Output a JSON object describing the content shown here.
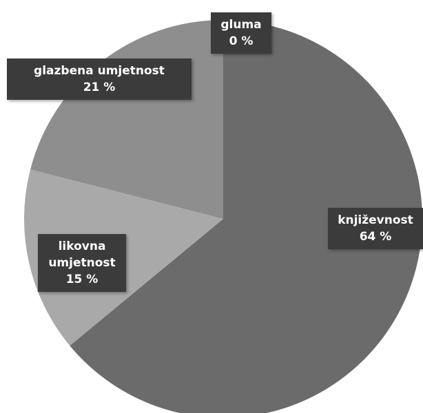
{
  "chart_data": {
    "type": "pie",
    "categories": [
      "književnost",
      "likovna umjetnost",
      "glazbena umjetnost",
      "gluma"
    ],
    "values": [
      64,
      15,
      21,
      0
    ],
    "value_labels": [
      "64 %",
      "15 %",
      "21 %",
      "0 %"
    ],
    "colors": [
      "#6b6b6b",
      "#a9a9a9",
      "#8e8e8e",
      "#7a7a7a"
    ]
  }
}
